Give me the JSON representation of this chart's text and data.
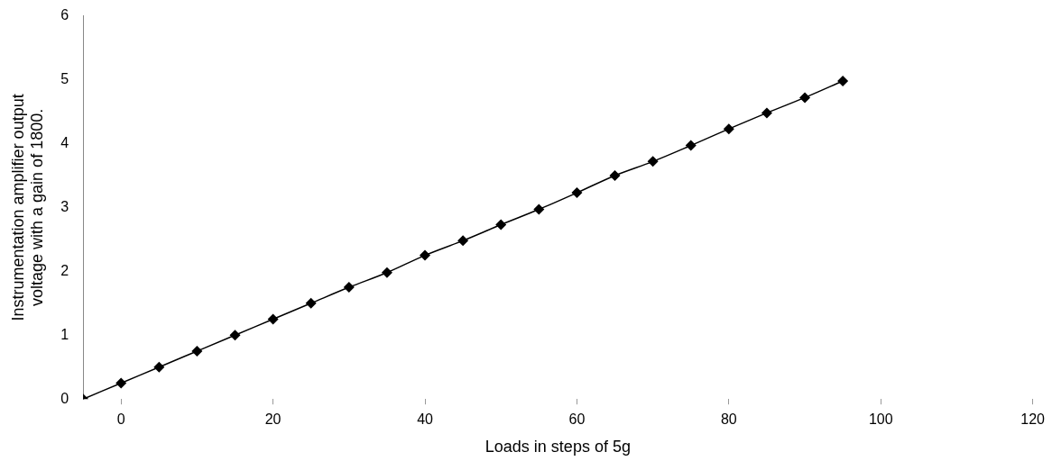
{
  "chart_data": {
    "type": "line",
    "xlabel": "Loads in steps of 5g",
    "ylabel": "Instrumentation amplifier output voltage with a gain of 1800.",
    "x": [
      -5,
      0,
      5,
      10,
      15,
      20,
      25,
      30,
      35,
      40,
      45,
      50,
      55,
      60,
      65,
      70,
      75,
      80,
      85,
      90,
      95
    ],
    "series": [
      {
        "color": "#000000",
        "values": [
          0,
          0.25,
          0.5,
          0.75,
          1.0,
          1.25,
          1.5,
          1.75,
          1.98,
          2.25,
          2.48,
          2.73,
          2.97,
          3.23,
          3.5,
          3.72,
          3.97,
          4.23,
          4.48,
          4.72,
          4.98
        ]
      }
    ],
    "xlim": [
      -5,
      120
    ],
    "xticks": [
      0,
      20,
      40,
      60,
      80,
      100,
      120
    ],
    "ylim": [
      0,
      6
    ],
    "yticks": [
      0,
      1,
      2,
      3,
      4,
      5,
      6
    ],
    "grid": false,
    "legend": false,
    "marker": "diamond",
    "line_style": "solid"
  }
}
